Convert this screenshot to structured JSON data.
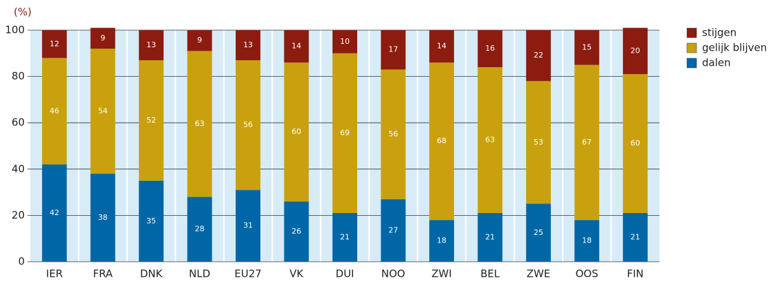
{
  "chart_data": {
    "type": "stacked_bar",
    "y_unit": "(%)",
    "categories": [
      "IER",
      "FRA",
      "DNK",
      "NLD",
      "EU27",
      "VK",
      "DUI",
      "NOO",
      "ZWI",
      "BEL",
      "ZWE",
      "OOS",
      "FIN"
    ],
    "series": [
      {
        "name": "dalen",
        "color": "#0066a6",
        "values": [
          42,
          38,
          35,
          28,
          31,
          26,
          21,
          27,
          18,
          21,
          25,
          18,
          21
        ]
      },
      {
        "name": "gelijk blijven",
        "color": "#c9a10e",
        "values": [
          46,
          54,
          52,
          63,
          56,
          60,
          69,
          56,
          68,
          63,
          53,
          67,
          60
        ]
      },
      {
        "name": "stijgen",
        "color": "#8c1c10",
        "values": [
          12,
          9,
          13,
          9,
          13,
          14,
          10,
          17,
          14,
          16,
          22,
          15,
          20
        ]
      }
    ],
    "ylim": [
      0,
      100
    ],
    "yticks": [
      0,
      20,
      40,
      60,
      80,
      100
    ],
    "grid": true,
    "legend": "right"
  }
}
